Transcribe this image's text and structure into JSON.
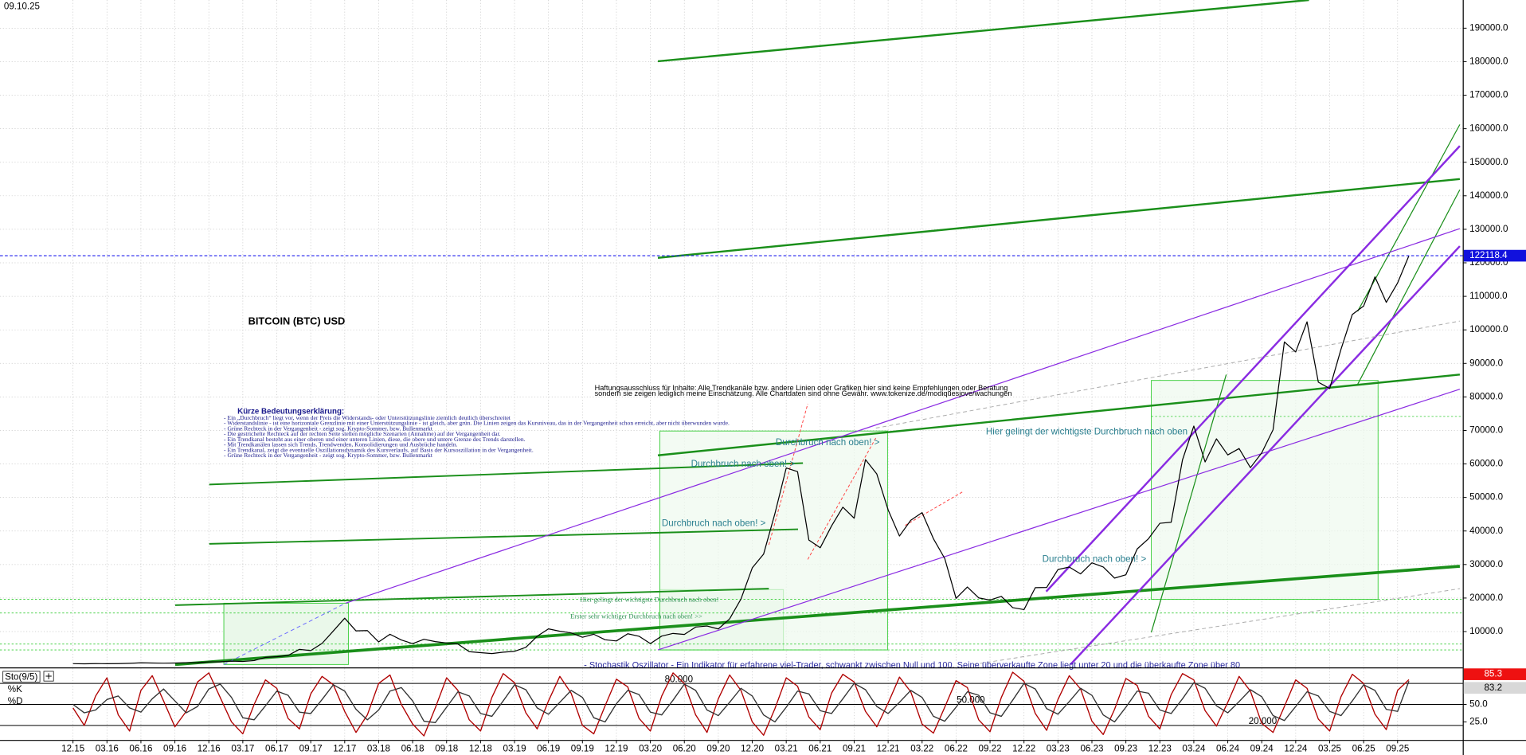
{
  "chart_data": [
    {
      "type": "line",
      "title": "BITCOIN (BTC) USD",
      "date": "09.10.25",
      "disclaimer": [
        "Haftungsausschluss für Inhalte: Alle Trendkanäle bzw. andere Linien oder Grafiken hier sind keine Empfehlungen oder Beratung",
        "sondern sie zeigen lediglich meine Einschätzung. Alle Chartdaten sind ohne Gewähr. www.tokenize.de/modiquesjove/wachungen"
      ],
      "legend_title": "Kürze Bedeutungserklärung:",
      "legend_lines": [
        "- Ein „Durchbruch“ liegt vor, wenn der Preis die Widerstands- oder Unterstützungslinie ziemlich deutlich überschreitet",
        "- Widerstandslinie - ist eine horizontale Grenzlinie mit einer Unterstützungslinie - ist gleich, aber grün. Die Linien zeigen das Kursniveau, das in der Vergangenheit schon erreicht, aber nicht überwunden wurde.",
        "- Grüne Rechteck in der Vergangenheit - zeigt sog. Krypto-Sommer, bzw. Bullenmarkt",
        "- Die gestrichelte Rechteck auf der rechten Seite stellen mögliche Szenarien (Annahme) auf der Vergangenheit dar.",
        "- Ein Trendkanal besteht aus einer oberen und einer unteren Linien, diese, die obere und untere Grenze des Trends darstellen.",
        "- Mit Trendkanälen lassen sich Trends, Trendwenden, Konsolidierungen und Ausbrüche handeln.",
        "- Ein Trendkanal, zeigt die eventuelle Oszillationsdynamik des Kursverlaufs, auf Basis der Kursoszillation in der Vergangenheit.",
        "- Grüne Rechteck in der Vergangenheit - zeigt sog. Krypto-Sommer, bzw. Bullenmarkt"
      ],
      "callouts": [
        "Durchbruch nach oben! >",
        "Durchbruch nach oben! >",
        "Durchbruch nach oben! >",
        "Durchbruch nach oben! >",
        "Hier gelingt der wichtigste Durchbruch nach oben",
        "Hier gelingt der wichtigste Durchbruch nach oben!",
        "Erster sehr wichtiger Durchbruch nach oben! >>"
      ],
      "categories": [
        "12.15",
        null,
        null,
        "03.16",
        null,
        null,
        "06.16",
        null,
        null,
        "09.16",
        null,
        null,
        "12.16",
        null,
        null,
        "03.17",
        null,
        null,
        "06.17",
        null,
        null,
        "09.17",
        null,
        null,
        "12.17",
        null,
        null,
        "03.18",
        null,
        null,
        "06.18",
        null,
        null,
        "09.18",
        null,
        null,
        "12.18",
        null,
        null,
        "03.19",
        null,
        null,
        "06.19",
        null,
        null,
        "09.19",
        null,
        null,
        "12.19",
        null,
        null,
        "03.20",
        null,
        null,
        "06.20",
        null,
        null,
        "09.20",
        null,
        null,
        "12.20",
        null,
        null,
        "03.21",
        null,
        null,
        "06.21",
        null,
        null,
        "09.21",
        null,
        null,
        "12.21",
        null,
        null,
        "03.22",
        null,
        null,
        "06.22",
        null,
        null,
        "09.22",
        null,
        null,
        "12.22",
        null,
        null,
        "03.23",
        null,
        null,
        "06.23",
        null,
        null,
        "09.23",
        null,
        null,
        "12.23",
        null,
        null,
        "03.24",
        null,
        null,
        "06.24",
        null,
        null,
        "09.24",
        null,
        null,
        "12.24",
        null,
        null,
        "03.25",
        null,
        null,
        "06.25",
        null,
        null,
        "09.25",
        null
      ],
      "series": [
        {
          "name": "BTC",
          "color": "#000000",
          "values": [
            430,
            370,
            437,
            416,
            448,
            531,
            673,
            624,
            573,
            609,
            698,
            742,
            963,
            970,
            1190,
            1080,
            1350,
            2300,
            2480,
            2870,
            4700,
            4340,
            6470,
            10200,
            14000,
            10200,
            10300,
            6900,
            9200,
            7500,
            6400,
            7700,
            7000,
            6600,
            6300,
            4000,
            3700,
            3450,
            3850,
            4100,
            5300,
            8600,
            10800,
            10100,
            9600,
            8300,
            9200,
            7550,
            7200,
            9350,
            8600,
            6400,
            8650,
            9450,
            9150,
            11350,
            11650,
            10780,
            13800,
            19700,
            29000,
            33100,
            45200,
            58800,
            57700,
            37300,
            35000,
            41500,
            47100,
            43800,
            61300,
            57000,
            46300,
            38500,
            43200,
            45500,
            37700,
            31800,
            19900,
            23300,
            20050,
            19400,
            20500,
            17150,
            16550,
            23100,
            23150,
            28500,
            29250,
            27200,
            30500,
            29250,
            25950,
            26950,
            34650,
            37700,
            42300,
            42600,
            61200,
            71300,
            60600,
            67500,
            62700,
            64600,
            58900,
            63300,
            70200,
            96400,
            93400,
            102400,
            84400,
            82500,
            94200,
            104600,
            107100,
            115800,
            108200,
            114000,
            122118.4
          ]
        }
      ],
      "ylim": [
        -700,
        198400
      ],
      "yticks": [
        {
          "value": 10000,
          "label": "10000.0"
        },
        {
          "value": 20000,
          "label": "20000.0"
        },
        {
          "value": 30000,
          "label": "30000.0"
        },
        {
          "value": 40000,
          "label": "40000.0"
        },
        {
          "value": 50000,
          "label": "50000.0"
        },
        {
          "value": 60000,
          "label": "60000.0"
        },
        {
          "value": 70000,
          "label": "70000.0"
        },
        {
          "value": 80000,
          "label": "80000.0"
        },
        {
          "value": 90000,
          "label": "90000.0"
        },
        {
          "value": 100000,
          "label": "100000.0"
        },
        {
          "value": 110000,
          "label": "110000.0"
        },
        {
          "value": 120000,
          "label": "120000.0"
        },
        {
          "value": 130000,
          "label": "130000.0"
        },
        {
          "value": 140000,
          "label": "140000.0"
        },
        {
          "value": 150000,
          "label": "150000.0"
        },
        {
          "value": 160000,
          "label": "160000.0"
        },
        {
          "value": 170000,
          "label": "170000.0"
        },
        {
          "value": 180000,
          "label": "180000.0"
        },
        {
          "value": 190000,
          "label": "190000.0"
        }
      ],
      "grid": true
    },
    {
      "type": "line",
      "title": "Sto(9/5)",
      "description": "- Stochastik Oszillator - Ein Indikator für erfahrene viel-Trader, schwankt zwischen Null und 100. Seine überverkaufte Zone liegt unter 20 und die überkaufte Zone über 80",
      "series": [
        {
          "name": "%K",
          "color": "#b00000",
          "values": [
            45,
            20,
            62,
            88,
            35,
            12,
            70,
            91,
            55,
            18,
            40,
            82,
            95,
            60,
            25,
            8,
            50,
            85,
            73,
            30,
            15,
            65,
            90,
            78,
            40,
            10,
            35,
            80,
            92,
            50,
            22,
            5,
            45,
            88,
            70,
            28,
            12,
            60,
            94,
            81,
            38,
            15,
            55,
            90,
            66,
            20,
            8,
            48,
            86,
            75,
            30,
            12,
            62,
            95,
            80,
            35,
            10,
            58,
            92,
            70,
            25,
            6,
            44,
            88,
            76,
            32,
            14,
            66,
            93,
            82,
            40,
            18,
            52,
            89,
            68,
            22,
            9,
            46,
            84,
            74,
            28,
            11,
            60,
            96,
            83,
            37,
            13,
            57,
            91,
            72,
            26,
            7,
            43,
            87,
            77,
            33,
            15,
            64,
            94,
            85,
            41,
            19,
            53,
            90,
            69,
            23,
            10,
            47,
            85,
            73,
            29,
            12,
            61,
            93,
            80,
            36,
            14,
            70,
            85.3
          ]
        },
        {
          "name": "%D",
          "color": "#333333",
          "values": [
            50,
            38,
            42,
            57,
            62,
            45,
            39,
            58,
            72,
            55,
            38,
            47,
            72,
            79,
            60,
            31,
            28,
            48,
            69,
            63,
            39,
            37,
            57,
            78,
            69,
            43,
            28,
            42,
            69,
            74,
            55,
            26,
            24,
            46,
            68,
            62,
            37,
            33,
            55,
            78,
            71,
            45,
            36,
            53,
            70,
            60,
            31,
            25,
            51,
            70,
            64,
            39,
            35,
            56,
            79,
            70,
            42,
            34,
            53,
            73,
            62,
            35,
            25,
            46,
            69,
            65,
            41,
            37,
            58,
            80,
            71,
            47,
            37,
            53,
            70,
            60,
            33,
            26,
            46,
            68,
            63,
            38,
            33,
            56,
            80,
            72,
            44,
            36,
            54,
            73,
            63,
            35,
            25,
            46,
            69,
            66,
            42,
            37,
            58,
            81,
            73,
            48,
            38,
            54,
            71,
            61,
            34,
            27,
            47,
            68,
            62,
            40,
            34,
            55,
            78,
            70,
            43,
            40,
            83.2
          ]
        }
      ],
      "levels": [
        {
          "value": 80,
          "label": "80.000"
        },
        {
          "value": 50,
          "label": "50.000"
        },
        {
          "value": 20,
          "label": "20.000"
        }
      ],
      "ylim": [
        0,
        100
      ],
      "yticks": [
        {
          "value": 50,
          "label": "50.0"
        },
        {
          "value": 25,
          "label": "25.0"
        }
      ]
    }
  ]
}
